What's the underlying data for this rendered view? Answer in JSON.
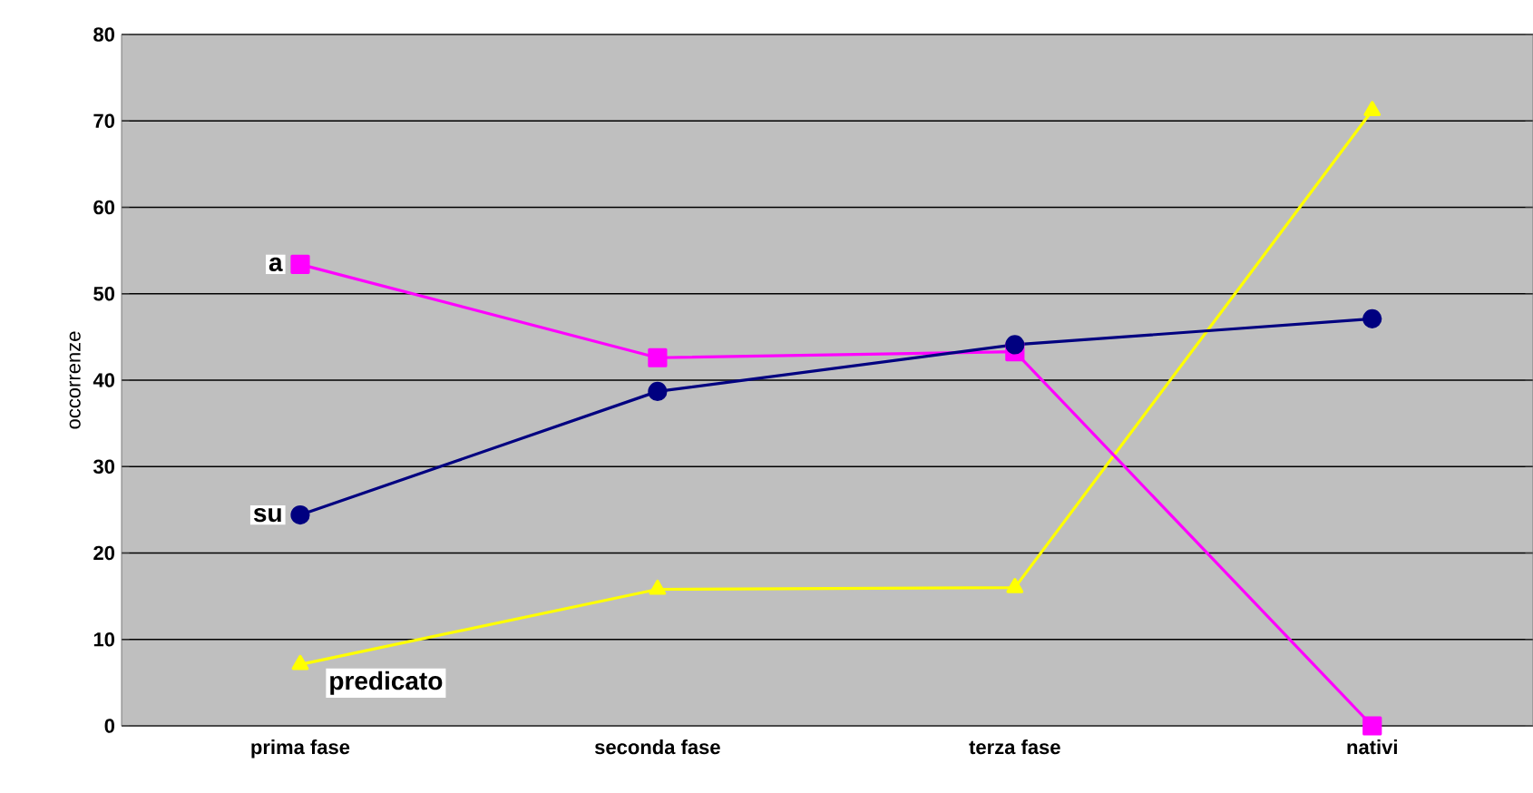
{
  "chart_data": {
    "type": "line",
    "ylabel": "occorrenze",
    "categories": [
      "prima fase",
      "seconda fase",
      "terza fase",
      "nativi"
    ],
    "series": [
      {
        "name": "su",
        "color": "#000080",
        "marker": "circle",
        "values": [
          24.4,
          38.7,
          44.1,
          47.1
        ]
      },
      {
        "name": "a",
        "color": "#ff00ff",
        "marker": "square",
        "values": [
          53.4,
          42.6,
          43.3,
          0
        ]
      },
      {
        "name": "predicato",
        "color": "#ffff00",
        "marker": "triangle",
        "values": [
          7.1,
          15.8,
          16.0,
          71.2
        ]
      }
    ],
    "ylim": [
      0,
      80
    ],
    "yticks": [
      0,
      10,
      20,
      30,
      40,
      50,
      60,
      70,
      80
    ],
    "grid": "y",
    "legend": false,
    "line_style": "solid"
  }
}
